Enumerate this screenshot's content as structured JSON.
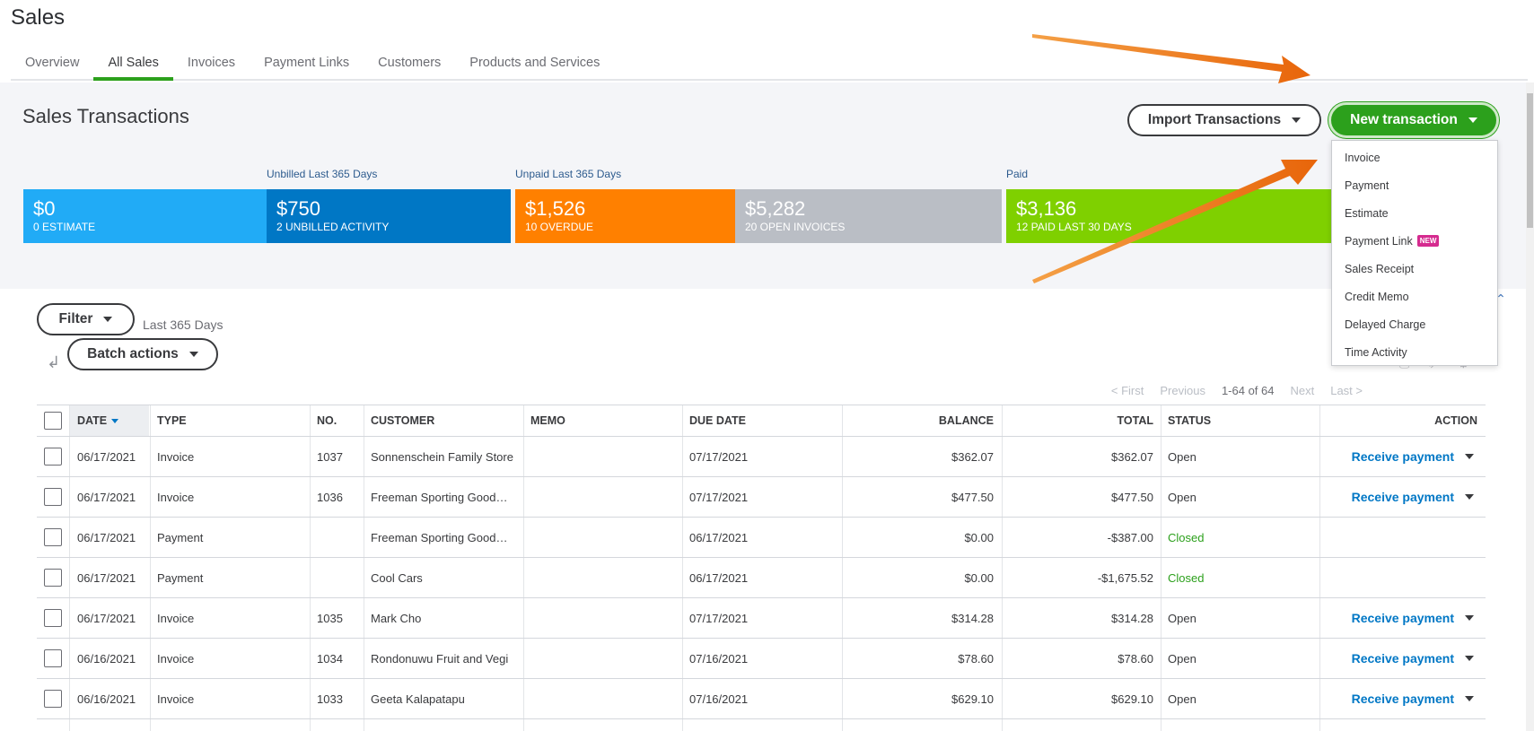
{
  "page": {
    "title": "Sales"
  },
  "tabs": [
    {
      "label": "Overview"
    },
    {
      "label": "All Sales"
    },
    {
      "label": "Invoices"
    },
    {
      "label": "Payment Links"
    },
    {
      "label": "Customers"
    },
    {
      "label": "Products and Services"
    }
  ],
  "header": {
    "title": "Sales Transactions",
    "import_label": "Import Transactions",
    "new_label": "New transaction"
  },
  "summary": {
    "labels": {
      "unbilled": "Unbilled Last 365 Days",
      "unpaid": "Unpaid Last 365 Days",
      "paid": "Paid"
    },
    "tiles": [
      {
        "amount": "$0",
        "caption": "0 ESTIMATE",
        "color": "#21abf6"
      },
      {
        "amount": "$750",
        "caption": "2 UNBILLED ACTIVITY",
        "color": "#0077c5"
      },
      {
        "amount": "$1,526",
        "caption": "10 OVERDUE",
        "color": "#ff8000"
      },
      {
        "amount": "$5,282",
        "caption": "20 OPEN INVOICES",
        "color": "#babec5"
      },
      {
        "amount": "$3,136",
        "caption": "12 PAID LAST 30 DAYS",
        "color": "#7fd000"
      }
    ]
  },
  "menu": {
    "items": [
      {
        "label": "Invoice"
      },
      {
        "label": "Payment"
      },
      {
        "label": "Estimate"
      },
      {
        "label": "Payment Link",
        "badge": "NEW"
      },
      {
        "label": "Sales Receipt"
      },
      {
        "label": "Credit Memo"
      },
      {
        "label": "Delayed Charge"
      },
      {
        "label": "Time Activity"
      }
    ]
  },
  "toolbar": {
    "filter_label": "Filter",
    "filter_text": "Last 365 Days",
    "batch_label": "Batch actions"
  },
  "pager": {
    "first": "< First",
    "previous": "Previous",
    "count": "1-64 of 64",
    "next": "Next",
    "last": "Last >"
  },
  "table": {
    "columns": {
      "date": "DATE",
      "type": "TYPE",
      "no": "NO.",
      "customer": "CUSTOMER",
      "memo": "MEMO",
      "due": "DUE DATE",
      "balance": "BALANCE",
      "total": "TOTAL",
      "status": "STATUS",
      "action": "ACTION"
    },
    "rows": [
      {
        "date": "06/17/2021",
        "type": "Invoice",
        "no": "1037",
        "customer": "Sonnenschein Family Store",
        "memo": "",
        "due": "07/17/2021",
        "balance": "$362.07",
        "total": "$362.07",
        "status": "Open",
        "action": "Receive payment"
      },
      {
        "date": "06/17/2021",
        "type": "Invoice",
        "no": "1036",
        "customer": "Freeman Sporting Good…",
        "memo": "",
        "due": "07/17/2021",
        "balance": "$477.50",
        "total": "$477.50",
        "status": "Open",
        "action": "Receive payment"
      },
      {
        "date": "06/17/2021",
        "type": "Payment",
        "no": "",
        "customer": "Freeman Sporting Good…",
        "memo": "",
        "due": "06/17/2021",
        "balance": "$0.00",
        "total": "-$387.00",
        "status": "Closed",
        "action": ""
      },
      {
        "date": "06/17/2021",
        "type": "Payment",
        "no": "",
        "customer": "Cool Cars",
        "memo": "",
        "due": "06/17/2021",
        "balance": "$0.00",
        "total": "-$1,675.52",
        "status": "Closed",
        "action": ""
      },
      {
        "date": "06/17/2021",
        "type": "Invoice",
        "no": "1035",
        "customer": "Mark Cho",
        "memo": "",
        "due": "07/17/2021",
        "balance": "$314.28",
        "total": "$314.28",
        "status": "Open",
        "action": "Receive payment"
      },
      {
        "date": "06/16/2021",
        "type": "Invoice",
        "no": "1034",
        "customer": "Rondonuwu Fruit and Vegi",
        "memo": "",
        "due": "07/16/2021",
        "balance": "$78.60",
        "total": "$78.60",
        "status": "Open",
        "action": "Receive payment"
      },
      {
        "date": "06/16/2021",
        "type": "Invoice",
        "no": "1033",
        "customer": "Geeta Kalapatapu",
        "memo": "",
        "due": "07/16/2021",
        "balance": "$629.10",
        "total": "$629.10",
        "status": "Open",
        "action": "Receive payment"
      }
    ]
  },
  "colors": {
    "accent_green": "#2ca01c",
    "link_blue": "#0077c5",
    "annotation_arrow": "#f07b12"
  }
}
